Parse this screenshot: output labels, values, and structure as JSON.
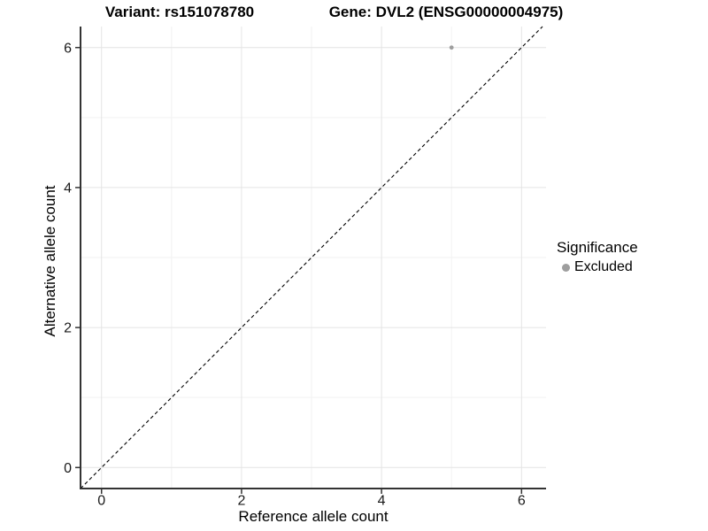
{
  "chart_data": {
    "type": "scatter",
    "title_variant": "Variant: rs151078780",
    "title_gene": "Gene: DVL2 (ENSG00000004975)",
    "xlabel": "Reference allele count",
    "ylabel": "Alternative allele count",
    "xlim": [
      -0.3,
      6.35
    ],
    "ylim": [
      -0.3,
      6.3
    ],
    "x_major_ticks": [
      0,
      2,
      4,
      6
    ],
    "y_major_ticks": [
      0,
      2,
      4,
      6
    ],
    "x_minor_ticks": [
      1,
      3,
      5
    ],
    "y_minor_ticks": [
      1,
      3,
      5
    ],
    "grid": "major+minor",
    "series": [
      {
        "name": "Excluded",
        "color": "#9e9e9e",
        "point_radius": 2.4,
        "points": [
          [
            5,
            6
          ]
        ]
      }
    ],
    "reference_line": {
      "slope": 1,
      "intercept": 0,
      "style": "dashed",
      "color": "#000000"
    },
    "legend": {
      "position": "right",
      "title": "Significance",
      "entries": [
        {
          "label": "Excluded",
          "color": "#9e9e9e"
        }
      ]
    },
    "colors": {
      "axis": "#333333",
      "tick": "#333333",
      "tick_label": "#1a1a1a",
      "grid_major": "#e4e4e4",
      "grid_minor": "#f2f2f2",
      "background": "#ffffff"
    }
  }
}
